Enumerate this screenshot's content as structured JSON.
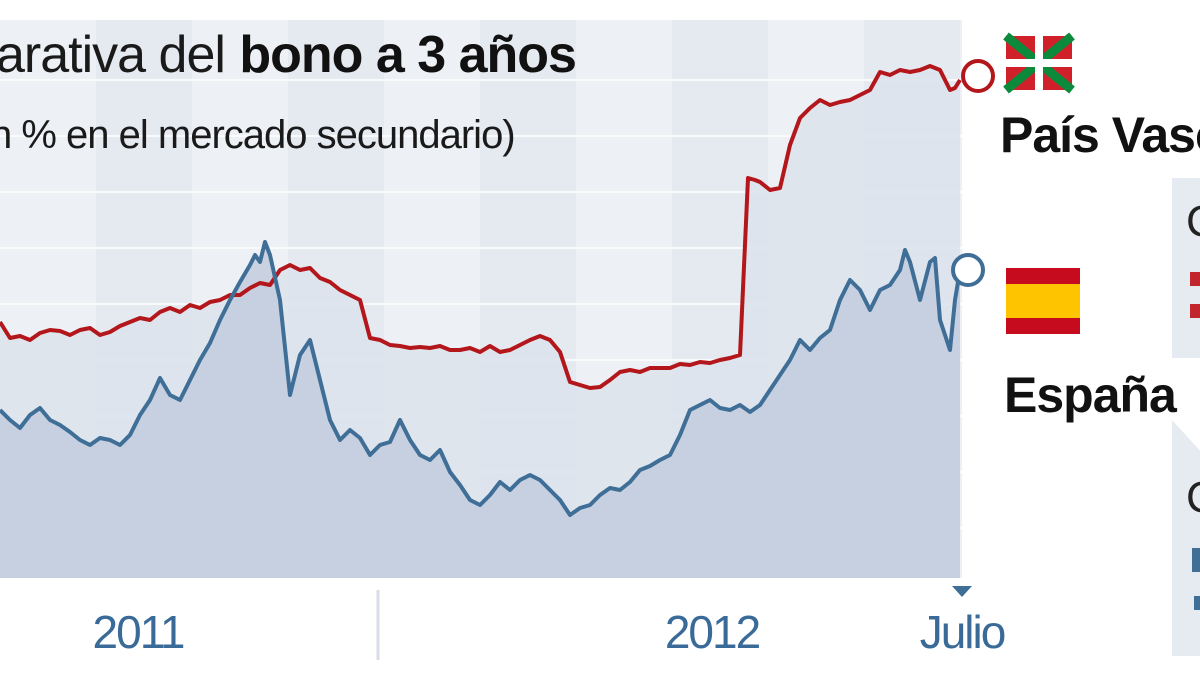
{
  "title": {
    "normal": "arativa del",
    "bold": "bono a 3 años"
  },
  "subtitle": "n % en el mercado secundario)",
  "colors": {
    "pais_vasco": "#b3171b",
    "espana": "#3f6e97",
    "bg_band_a": "#e5e9f0",
    "bg_band_b": "#edf0f5",
    "area_fill": "#c3cddd",
    "ikurrina_green": "#0b8a3c",
    "ikurrina_red": "#d0202a",
    "spain_red": "#c60b1e",
    "spain_yellow": "#ffc400"
  },
  "chart_data": {
    "type": "line",
    "title": "",
    "xlabel": "",
    "ylabel": "",
    "x_ticks": [
      "2011",
      "2012",
      "Julio"
    ],
    "grid": true,
    "series": [
      {
        "name": "País Vasco",
        "color": "#b3171b",
        "points": [
          [
            0,
            322
          ],
          [
            10,
            338
          ],
          [
            20,
            336
          ],
          [
            30,
            340
          ],
          [
            40,
            333
          ],
          [
            50,
            330
          ],
          [
            60,
            331
          ],
          [
            70,
            335
          ],
          [
            80,
            330
          ],
          [
            90,
            328
          ],
          [
            100,
            335
          ],
          [
            110,
            332
          ],
          [
            120,
            326
          ],
          [
            130,
            322
          ],
          [
            140,
            318
          ],
          [
            150,
            320
          ],
          [
            160,
            312
          ],
          [
            170,
            308
          ],
          [
            180,
            312
          ],
          [
            190,
            305
          ],
          [
            200,
            308
          ],
          [
            210,
            302
          ],
          [
            220,
            300
          ],
          [
            230,
            295
          ],
          [
            240,
            295
          ],
          [
            250,
            288
          ],
          [
            260,
            283
          ],
          [
            270,
            285
          ],
          [
            280,
            270
          ],
          [
            290,
            265
          ],
          [
            300,
            270
          ],
          [
            310,
            268
          ],
          [
            320,
            278
          ],
          [
            330,
            282
          ],
          [
            340,
            290
          ],
          [
            350,
            295
          ],
          [
            360,
            300
          ],
          [
            370,
            338
          ],
          [
            380,
            340
          ],
          [
            390,
            345
          ],
          [
            400,
            346
          ],
          [
            410,
            348
          ],
          [
            420,
            347
          ],
          [
            430,
            348
          ],
          [
            440,
            346
          ],
          [
            450,
            350
          ],
          [
            460,
            350
          ],
          [
            470,
            348
          ],
          [
            480,
            352
          ],
          [
            490,
            346
          ],
          [
            500,
            352
          ],
          [
            510,
            350
          ],
          [
            520,
            345
          ],
          [
            530,
            340
          ],
          [
            540,
            336
          ],
          [
            550,
            340
          ],
          [
            560,
            352
          ],
          [
            570,
            382
          ],
          [
            580,
            385
          ],
          [
            590,
            388
          ],
          [
            600,
            387
          ],
          [
            610,
            380
          ],
          [
            620,
            372
          ],
          [
            630,
            370
          ],
          [
            640,
            372
          ],
          [
            650,
            368
          ],
          [
            660,
            368
          ],
          [
            670,
            368
          ],
          [
            680,
            364
          ],
          [
            690,
            365
          ],
          [
            700,
            362
          ],
          [
            710,
            363
          ],
          [
            720,
            360
          ],
          [
            730,
            358
          ],
          [
            740,
            355
          ],
          [
            748,
            178
          ],
          [
            755,
            180
          ],
          [
            760,
            182
          ],
          [
            770,
            190
          ],
          [
            780,
            188
          ],
          [
            790,
            145
          ],
          [
            800,
            118
          ],
          [
            810,
            108
          ],
          [
            820,
            100
          ],
          [
            830,
            105
          ],
          [
            840,
            102
          ],
          [
            850,
            100
          ],
          [
            860,
            95
          ],
          [
            870,
            90
          ],
          [
            880,
            72
          ],
          [
            890,
            75
          ],
          [
            900,
            70
          ],
          [
            910,
            72
          ],
          [
            920,
            70
          ],
          [
            930,
            66
          ],
          [
            940,
            70
          ],
          [
            950,
            90
          ],
          [
            955,
            88
          ],
          [
            960,
            80
          ]
        ]
      },
      {
        "name": "España",
        "color": "#3f6e97",
        "points": [
          [
            0,
            410
          ],
          [
            10,
            420
          ],
          [
            20,
            428
          ],
          [
            30,
            415
          ],
          [
            40,
            408
          ],
          [
            50,
            420
          ],
          [
            60,
            425
          ],
          [
            70,
            432
          ],
          [
            80,
            440
          ],
          [
            90,
            445
          ],
          [
            100,
            438
          ],
          [
            110,
            440
          ],
          [
            120,
            445
          ],
          [
            130,
            435
          ],
          [
            140,
            415
          ],
          [
            150,
            400
          ],
          [
            160,
            378
          ],
          [
            170,
            395
          ],
          [
            180,
            400
          ],
          [
            190,
            380
          ],
          [
            200,
            360
          ],
          [
            210,
            343
          ],
          [
            220,
            320
          ],
          [
            230,
            300
          ],
          [
            240,
            282
          ],
          [
            250,
            265
          ],
          [
            255,
            255
          ],
          [
            260,
            262
          ],
          [
            265,
            242
          ],
          [
            270,
            255
          ],
          [
            280,
            300
          ],
          [
            290,
            395
          ],
          [
            300,
            355
          ],
          [
            310,
            340
          ],
          [
            320,
            380
          ],
          [
            330,
            420
          ],
          [
            340,
            440
          ],
          [
            350,
            430
          ],
          [
            360,
            438
          ],
          [
            370,
            455
          ],
          [
            380,
            445
          ],
          [
            390,
            442
          ],
          [
            400,
            420
          ],
          [
            410,
            440
          ],
          [
            420,
            455
          ],
          [
            430,
            460
          ],
          [
            440,
            450
          ],
          [
            450,
            472
          ],
          [
            460,
            485
          ],
          [
            470,
            500
          ],
          [
            480,
            505
          ],
          [
            490,
            495
          ],
          [
            500,
            482
          ],
          [
            510,
            490
          ],
          [
            520,
            480
          ],
          [
            530,
            475
          ],
          [
            540,
            480
          ],
          [
            550,
            490
          ],
          [
            560,
            500
          ],
          [
            570,
            515
          ],
          [
            580,
            508
          ],
          [
            590,
            505
          ],
          [
            600,
            495
          ],
          [
            610,
            488
          ],
          [
            620,
            490
          ],
          [
            630,
            482
          ],
          [
            640,
            470
          ],
          [
            650,
            466
          ],
          [
            660,
            460
          ],
          [
            670,
            455
          ],
          [
            680,
            435
          ],
          [
            690,
            410
          ],
          [
            700,
            405
          ],
          [
            710,
            400
          ],
          [
            720,
            408
          ],
          [
            730,
            410
          ],
          [
            740,
            405
          ],
          [
            750,
            412
          ],
          [
            760,
            405
          ],
          [
            770,
            390
          ],
          [
            780,
            375
          ],
          [
            790,
            360
          ],
          [
            800,
            340
          ],
          [
            810,
            350
          ],
          [
            820,
            338
          ],
          [
            830,
            330
          ],
          [
            840,
            300
          ],
          [
            850,
            280
          ],
          [
            860,
            290
          ],
          [
            870,
            310
          ],
          [
            880,
            290
          ],
          [
            890,
            285
          ],
          [
            900,
            270
          ],
          [
            905,
            250
          ],
          [
            910,
            262
          ],
          [
            920,
            300
          ],
          [
            930,
            262
          ],
          [
            935,
            258
          ],
          [
            940,
            320
          ],
          [
            950,
            350
          ],
          [
            955,
            300
          ],
          [
            960,
            270
          ]
        ]
      }
    ]
  },
  "legend": {
    "pais_vasco": "País Vasco",
    "espana": "España"
  },
  "panel_glyphs": {
    "top_row": "C",
    "bottom_row": "C"
  }
}
